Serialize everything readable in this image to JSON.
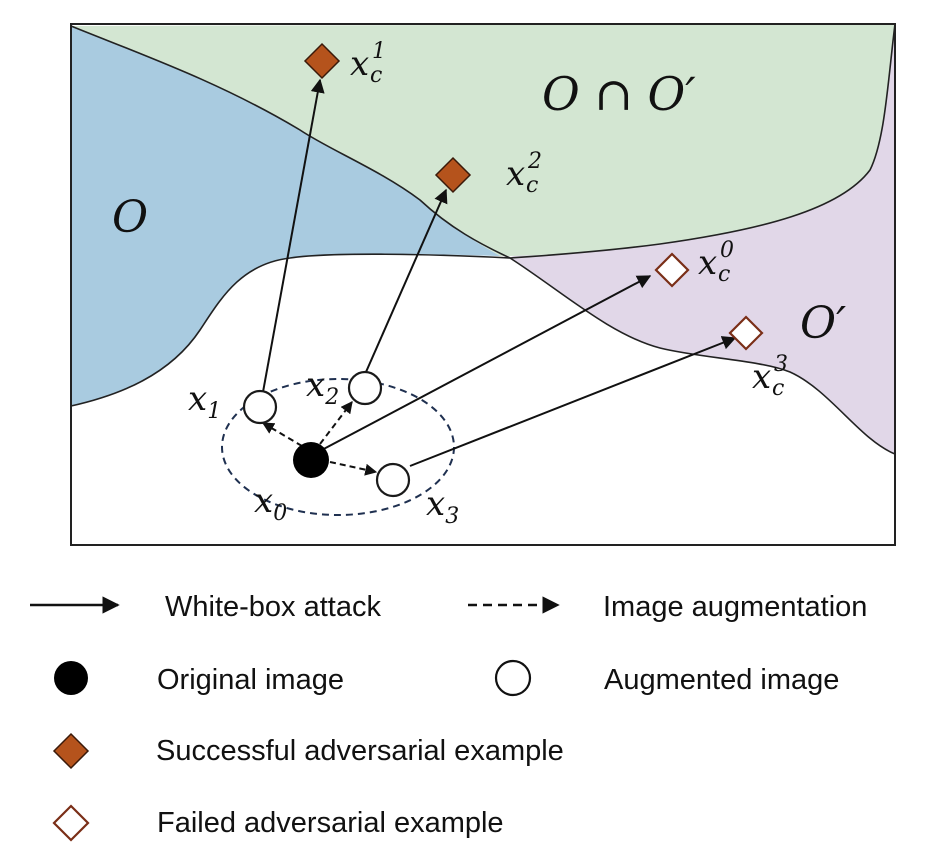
{
  "regions": {
    "o_label": "O",
    "intersection_label": "O ∩ O′",
    "o_prime_label": "O′"
  },
  "points": {
    "x0": {
      "base": "x",
      "sub": "0"
    },
    "x1": {
      "base": "x",
      "sub": "1"
    },
    "x2": {
      "base": "x",
      "sub": "2"
    },
    "x3": {
      "base": "x",
      "sub": "3"
    },
    "xc1": {
      "base": "x",
      "sub": "c",
      "sup": "1"
    },
    "xc2": {
      "base": "x",
      "sub": "c",
      "sup": "2"
    },
    "xc0": {
      "base": "x",
      "sub": "c",
      "sup": "0"
    },
    "xc3": {
      "base": "x",
      "sub": "c",
      "sup": "3"
    }
  },
  "legend": {
    "white_box_attack": "White-box attack",
    "image_augmentation": "Image augmentation",
    "original_image": "Original image",
    "augmented_image": "Augmented image",
    "successful_adversarial": "Successful adversarial example",
    "failed_adversarial": "Failed adversarial example"
  },
  "colors": {
    "region_o": "#a9cbe0",
    "region_intersection": "#d3e6d2",
    "region_o_prime": "#e1d7e8",
    "success_marker": "#b5531c",
    "failed_marker_stroke": "#7a2e17"
  }
}
